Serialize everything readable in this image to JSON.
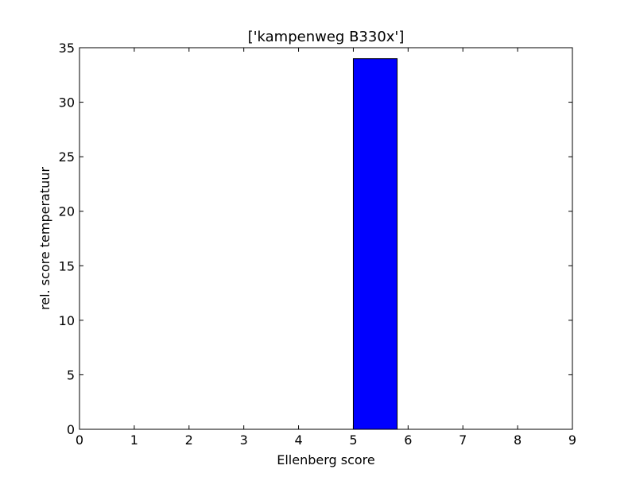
{
  "chart_data": {
    "type": "bar",
    "title": "['kampenweg B330x']",
    "xlabel": "Ellenberg score",
    "ylabel": "rel. score temperatuur",
    "xlim": [
      0,
      9
    ],
    "ylim": [
      0,
      35
    ],
    "xticks": [
      0,
      1,
      2,
      3,
      4,
      5,
      6,
      7,
      8,
      9
    ],
    "yticks": [
      0,
      5,
      10,
      15,
      20,
      25,
      30,
      35
    ],
    "bar_width": 0.8,
    "bars": [
      {
        "x": 1,
        "value": 0
      },
      {
        "x": 2,
        "value": 0
      },
      {
        "x": 3,
        "value": 0
      },
      {
        "x": 4,
        "value": 0
      },
      {
        "x": 5,
        "value": 34
      },
      {
        "x": 6,
        "value": 0
      },
      {
        "x": 7,
        "value": 0
      },
      {
        "x": 8,
        "value": 0
      }
    ],
    "bar_color": "#0000ff",
    "edge_color": "#000000",
    "grid": false
  }
}
